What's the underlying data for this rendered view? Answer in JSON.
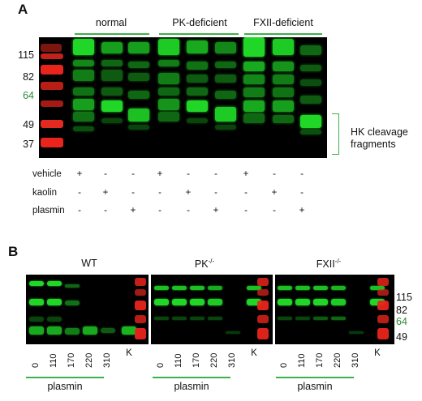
{
  "panel_a": {
    "letter": "A",
    "groups": [
      {
        "label": "normal"
      },
      {
        "label": "PK-deficient"
      },
      {
        "label": "FXII-deficient"
      }
    ],
    "mw_markers": [
      {
        "label": "115",
        "highlight": false
      },
      {
        "label": "82",
        "highlight": false
      },
      {
        "label": "64",
        "highlight": true
      },
      {
        "label": "49",
        "highlight": false
      },
      {
        "label": "37",
        "highlight": false
      }
    ],
    "annotation_line1": "HK cleavage",
    "annotation_line2": "fragments",
    "treatments": [
      {
        "label": "vehicle",
        "signs": [
          "+",
          "-",
          "-",
          "+",
          "-",
          "-",
          "+",
          "-",
          "-"
        ]
      },
      {
        "label": "kaolin",
        "signs": [
          "-",
          "+",
          "-",
          "-",
          "+",
          "-",
          "-",
          "+",
          "-"
        ]
      },
      {
        "label": "plasmin",
        "signs": [
          "-",
          "-",
          "+",
          "-",
          "-",
          "+",
          "-",
          "-",
          "+"
        ]
      }
    ]
  },
  "panel_b": {
    "letter": "B",
    "blots": [
      {
        "title": "WT",
        "lanes": [
          "0",
          "110",
          "170",
          "220",
          "310",
          "K"
        ],
        "bottom_label": "plasmin"
      },
      {
        "title": "PK",
        "title_sup": "-/-",
        "lanes": [
          "0",
          "110",
          "170",
          "220",
          "310",
          "K"
        ],
        "bottom_label": "plasmin"
      },
      {
        "title": "FXII",
        "title_sup": "-/-",
        "lanes": [
          "0",
          "110",
          "170",
          "220",
          "310",
          "K"
        ],
        "bottom_label": "plasmin"
      }
    ],
    "mw_markers": [
      {
        "label": "115",
        "highlight": false
      },
      {
        "label": "82",
        "highlight": false
      },
      {
        "label": "64",
        "highlight": true
      },
      {
        "label": "49",
        "highlight": false
      }
    ]
  },
  "colors": {
    "accent_green": "#3cb04a",
    "band_green": "#22e22a",
    "ladder_red": "#e8241c",
    "blot_background": "#000000"
  }
}
